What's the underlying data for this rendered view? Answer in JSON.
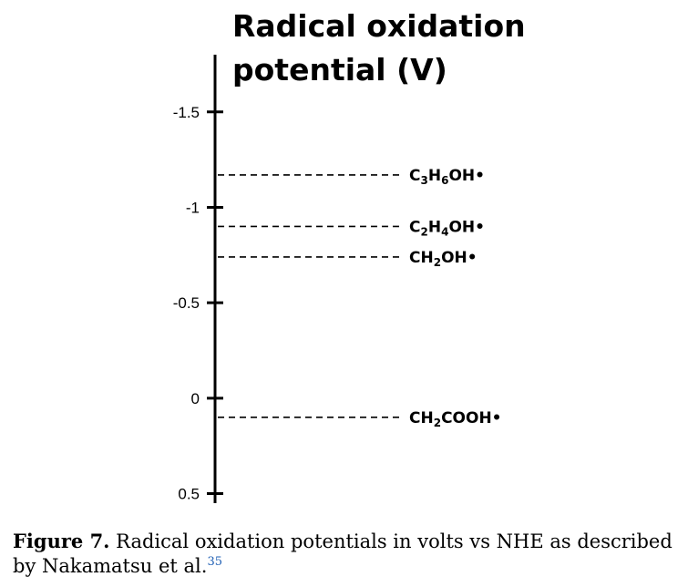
{
  "chart_data": {
    "type": "scatter",
    "title_lines": [
      "Radical oxidation",
      "potential (V)"
    ],
    "ylim": [
      -1.8,
      0.55
    ],
    "y_inverted": true,
    "ticks": [
      {
        "value": -1.5,
        "label": "-1.5"
      },
      {
        "value": -1,
        "label": "-1"
      },
      {
        "value": -0.5,
        "label": "-0.5"
      },
      {
        "value": 0,
        "label": "0"
      },
      {
        "value": 0.5,
        "label": "0.5"
      }
    ],
    "points": [
      {
        "main": "C",
        "parts": [
          {
            "t": "C"
          },
          {
            "t": "3",
            "sub": true
          },
          {
            "t": "H"
          },
          {
            "t": "6",
            "sub": true
          },
          {
            "t": "OH•"
          }
        ],
        "y": -1.17
      },
      {
        "main": "C",
        "parts": [
          {
            "t": "C"
          },
          {
            "t": "2",
            "sub": true
          },
          {
            "t": "H"
          },
          {
            "t": "4",
            "sub": true
          },
          {
            "t": "OH•"
          }
        ],
        "y": -0.9
      },
      {
        "main": "C",
        "parts": [
          {
            "t": "CH"
          },
          {
            "t": "2",
            "sub": true
          },
          {
            "t": "OH•"
          }
        ],
        "y": -0.74
      },
      {
        "main": "C",
        "parts": [
          {
            "t": "CH"
          },
          {
            "t": "2",
            "sub": true
          },
          {
            "t": "COOH•"
          }
        ],
        "y": 0.1
      }
    ],
    "line_style": "dashed",
    "grid": false
  },
  "caption": {
    "figure_label": "Figure 7.",
    "text": " Radical oxidation potentials in volts vs NHE as described by Nakamatsu et al.",
    "reference": "35"
  }
}
